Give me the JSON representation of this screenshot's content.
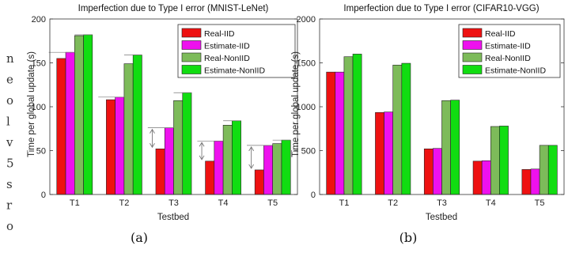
{
  "side_fragments": [
    "n",
    "e",
    "o",
    "l",
    "v",
    "5",
    "s",
    "r",
    "o"
  ],
  "colors": {
    "Real-IID": "#ee1111",
    "Estimate-IID": "#ee11ee",
    "Real-NonIID": "#7dbb5a",
    "Estimate-NonIID": "#11dd11"
  },
  "chart_data": [
    {
      "type": "bar",
      "title": "Imperfection due to Type I error (MNIST-LeNet)",
      "xlabel": "Testbed",
      "ylabel": "Time per global update (s)",
      "caption": "(a)",
      "categories": [
        "T1",
        "T2",
        "T3",
        "T4",
        "T5"
      ],
      "ylim": [
        0,
        200
      ],
      "yticks": [
        0,
        50,
        100,
        150,
        200
      ],
      "legend_position": "top-right",
      "series": [
        {
          "name": "Real-IID",
          "values": [
            155,
            108,
            52,
            38,
            28
          ]
        },
        {
          "name": "Estimate-IID",
          "values": [
            162,
            111,
            76,
            61,
            56
          ]
        },
        {
          "name": "Real-NonIID",
          "values": [
            181,
            149,
            107,
            79,
            58
          ]
        },
        {
          "name": "Estimate-NonIID",
          "values": [
            182,
            159,
            116,
            84,
            62
          ]
        }
      ],
      "annotations": "double-headed arrows between Real-IID and Estimate-IID at T3, T4, T5"
    },
    {
      "type": "bar",
      "title": "Imperfection due to Type I error (CIFAR10-VGG)",
      "xlabel": "Testbed",
      "ylabel": "Time per global update (s)",
      "caption": "(b)",
      "categories": [
        "T1",
        "T2",
        "T3",
        "T4",
        "T5"
      ],
      "ylim": [
        0,
        2000
      ],
      "yticks": [
        0,
        500,
        1000,
        1500,
        2000
      ],
      "legend_position": "top-right",
      "series": [
        {
          "name": "Real-IID",
          "values": [
            1395,
            935,
            520,
            380,
            285
          ]
        },
        {
          "name": "Estimate-IID",
          "values": [
            1395,
            940,
            525,
            385,
            290
          ]
        },
        {
          "name": "Real-NonIID",
          "values": [
            1570,
            1475,
            1070,
            775,
            560
          ]
        },
        {
          "name": "Estimate-NonIID",
          "values": [
            1600,
            1495,
            1075,
            780,
            560
          ]
        }
      ]
    }
  ]
}
